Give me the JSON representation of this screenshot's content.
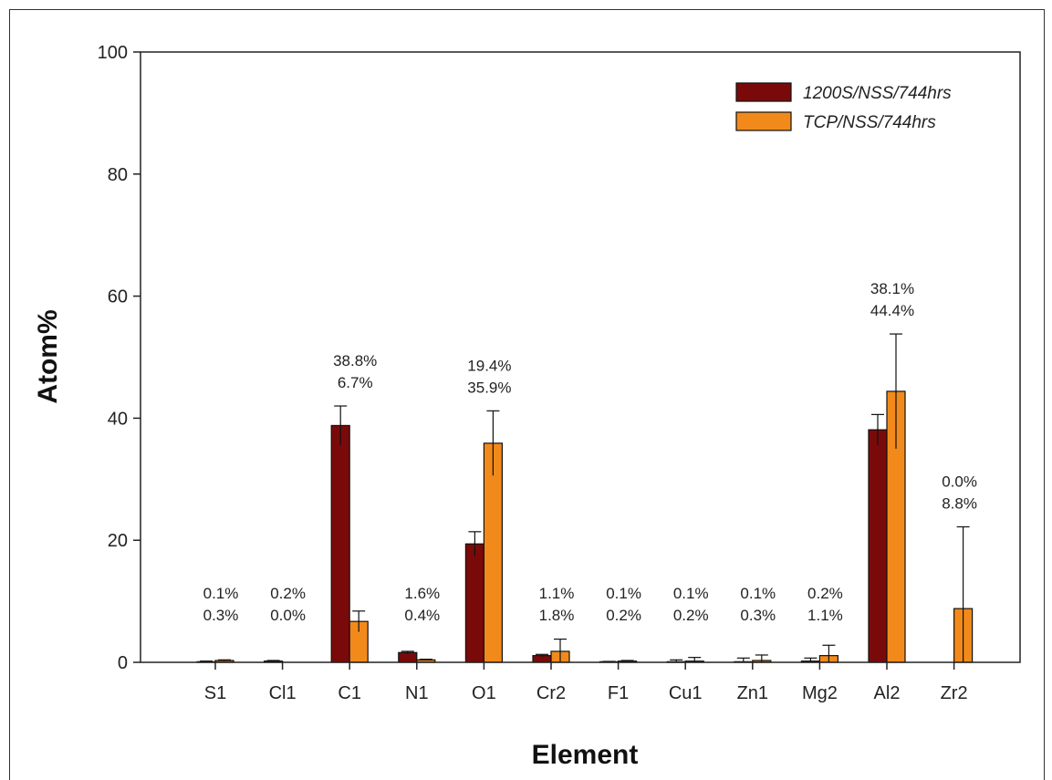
{
  "chart_data": {
    "type": "bar",
    "xlabel": "Element",
    "ylabel": "Atom%",
    "ylim": [
      0,
      100
    ],
    "yticks": [
      0,
      20,
      40,
      60,
      80,
      100
    ],
    "legend_position": "top-right",
    "categories": [
      "S1",
      "Cl1",
      "C1",
      "N1",
      "O1",
      "Cr2",
      "F1",
      "Cu1",
      "Zn1",
      "Mg2",
      "Al2",
      "Zr2"
    ],
    "series": [
      {
        "name": "1200S/NSS/744hrs",
        "color": "#7a0a0a",
        "values": [
          0.1,
          0.2,
          38.8,
          1.6,
          19.4,
          1.1,
          0.1,
          0.1,
          0.1,
          0.2,
          38.1,
          0.0
        ],
        "errors": [
          0.1,
          0.1,
          3.2,
          0.2,
          2.0,
          0.2,
          0.05,
          0.3,
          0.6,
          0.5,
          2.5,
          0.0
        ]
      },
      {
        "name": "TCP/NSS/744hrs",
        "color": "#f28a1b",
        "values": [
          0.3,
          0.0,
          6.7,
          0.4,
          35.9,
          1.8,
          0.2,
          0.2,
          0.3,
          1.1,
          44.4,
          8.8
        ],
        "errors": [
          0.1,
          0.0,
          1.7,
          0.1,
          5.3,
          2.0,
          0.1,
          0.6,
          0.9,
          1.7,
          9.4,
          13.4
        ]
      }
    ],
    "annotations": [
      {
        "category": "S1",
        "lines": [
          "0.1%",
          "0.3%"
        ]
      },
      {
        "category": "Cl1",
        "lines": [
          "0.2%",
          "0.0%"
        ]
      },
      {
        "category": "C1",
        "lines": [
          "38.8%",
          "6.7%"
        ]
      },
      {
        "category": "N1",
        "lines": [
          "1.6%",
          "0.4%"
        ]
      },
      {
        "category": "O1",
        "lines": [
          "19.4%",
          "35.9%"
        ]
      },
      {
        "category": "Cr2",
        "lines": [
          "1.1%",
          "1.8%"
        ]
      },
      {
        "category": "F1",
        "lines": [
          "0.1%",
          "0.2%"
        ]
      },
      {
        "category": "Cu1",
        "lines": [
          "0.1%",
          "0.2%"
        ]
      },
      {
        "category": "Zn1",
        "lines": [
          "0.1%",
          "0.3%"
        ]
      },
      {
        "category": "Mg2",
        "lines": [
          "0.2%",
          "1.1%"
        ]
      },
      {
        "category": "Al2",
        "lines": [
          "38.1%",
          "44.4%"
        ]
      },
      {
        "category": "Zr2",
        "lines": [
          "0.0%",
          "8.8%"
        ]
      }
    ]
  }
}
